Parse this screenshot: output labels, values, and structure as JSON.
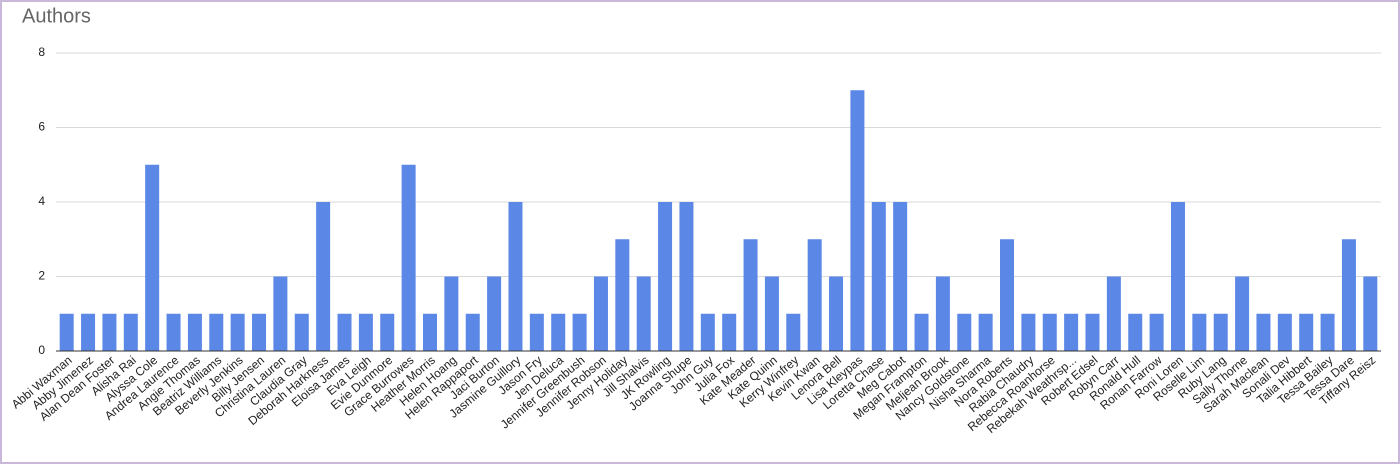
{
  "chart_data": {
    "type": "bar",
    "title": "Authors",
    "categories": [
      "Abbi Waxman",
      "Abby Jimenez",
      "Alan Dean Foster",
      "Alisha Rai",
      "Alyssa Cole",
      "Andrea Laurence",
      "Angie Thomas",
      "Beatriz Williams",
      "Beverly Jenkins",
      "Billy Jensen",
      "Christina Lauren",
      "Claudia Gray",
      "Deborah Harkness",
      "Eloisa James",
      "Eva Leigh",
      "Evie Dunmore",
      "Grace Burrowes",
      "Heather Morris",
      "Helen Hoang",
      "Helen Rappaport",
      "Jaci Burton",
      "Jasmine Guillory",
      "Jason Fry",
      "Jen Deluca",
      "Jennifer Greenbush",
      "Jennifer Robson",
      "Jenny Holiday",
      "Jill Shalvis",
      "JK Rowling",
      "Joanna Shupe",
      "John Guy",
      "Julia Fox",
      "Kate Meader",
      "Kate Quinn",
      "Kerry Winfrey",
      "Kevin Kwan",
      "Lenora Bell",
      "Lisa Kleypas",
      "Loretta Chase",
      "Meg Cabot",
      "Megan Frampton",
      "Meljean Brook",
      "Nancy Goldstone",
      "Nisha Sharma",
      "Nora Roberts",
      "Rabia Chaudry",
      "Rebecca Roanhorse",
      "Rebekah Weathrsp...",
      "Robert Edsel",
      "Robyn Carr",
      "Ronald Hull",
      "Ronan Farrow",
      "Roni Loren",
      "Roselle Lim",
      "Ruby Lang",
      "Sally Thorne",
      "Sarah Maclean",
      "Sonali Dev",
      "Talia Hibbert",
      "Tessa Bailey",
      "Tessa Dare",
      "Tiffany Reisz"
    ],
    "values": [
      1,
      1,
      1,
      1,
      5,
      1,
      1,
      1,
      1,
      1,
      2,
      1,
      4,
      1,
      1,
      1,
      5,
      1,
      2,
      1,
      2,
      4,
      1,
      1,
      1,
      2,
      3,
      2,
      4,
      4,
      1,
      1,
      3,
      2,
      1,
      3,
      2,
      7,
      4,
      4,
      1,
      2,
      1,
      1,
      3,
      1,
      1,
      1,
      1,
      2,
      1,
      1,
      4,
      1,
      1,
      2,
      1,
      1,
      1,
      1,
      3,
      2
    ],
    "color": "#5b87e6",
    "ylim": [
      0,
      8
    ],
    "yticks": [
      0,
      2,
      4,
      6,
      8
    ],
    "grid": true
  }
}
